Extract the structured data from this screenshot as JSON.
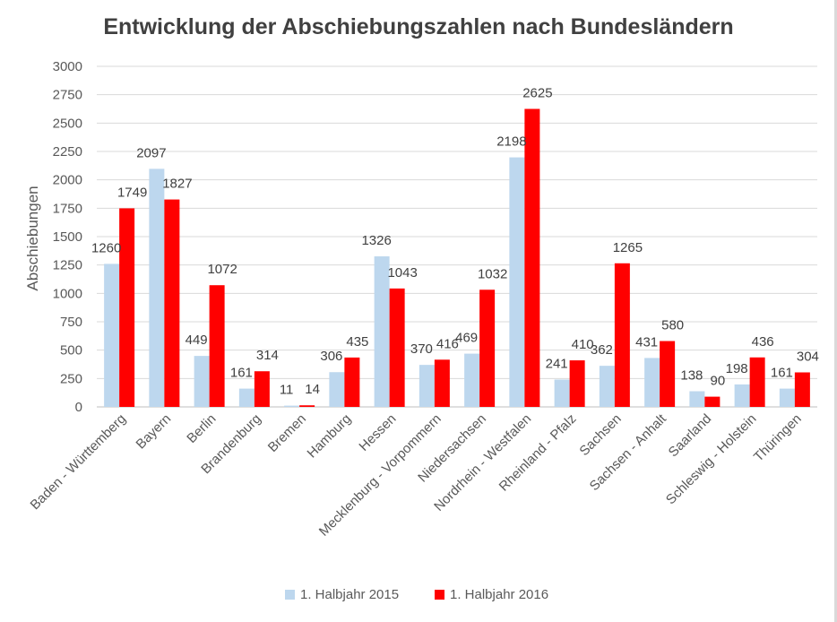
{
  "chart_data": {
    "type": "bar",
    "title": "Entwicklung der Abschiebungszahlen nach Bundesländern",
    "xlabel": "",
    "ylabel": "Abschiebungen",
    "ylim": [
      0,
      3000
    ],
    "yticks": [
      0,
      250,
      500,
      750,
      1000,
      1250,
      1500,
      1750,
      2000,
      2250,
      2500,
      2750,
      3000
    ],
    "grid": true,
    "legend_position": "bottom",
    "categories": [
      "Baden - Württemberg",
      "Bayern",
      "Berlin",
      "Brandenburg",
      "Bremen",
      "Hamburg",
      "Hessen",
      "Mecklenburg - Vorpommern",
      "Niedersachsen",
      "Nordrhein - Westfalen",
      "Rheinland - Pfalz",
      "Sachsen",
      "Sachsen - Anhalt",
      "Saarland",
      "Schleswig - Holstein",
      "Thüringen"
    ],
    "series": [
      {
        "name": "1. Halbjahr 2015",
        "color": "#bdd7ee",
        "values": [
          1260,
          2097,
          449,
          161,
          11,
          306,
          1326,
          370,
          469,
          2198,
          241,
          362,
          431,
          138,
          198,
          161
        ],
        "labels": [
          "1260",
          "2097",
          "449",
          "161",
          "11",
          "306",
          "1326",
          "370",
          "469",
          "2198",
          "241",
          "362",
          "431",
          "138",
          "198",
          "161"
        ]
      },
      {
        "name": "1. Halbjahr 2016",
        "color": "#ff0000",
        "values": [
          1749,
          1827,
          1072,
          314,
          14,
          435,
          1043,
          416,
          1032,
          2625,
          410,
          1265,
          580,
          90,
          436,
          304
        ],
        "labels": [
          "1749",
          "1827",
          "1072",
          "314",
          "14",
          "435",
          "1043",
          "416",
          "1032",
          "2625",
          "410",
          "1265",
          "580",
          "90",
          "436",
          "304"
        ]
      }
    ]
  }
}
